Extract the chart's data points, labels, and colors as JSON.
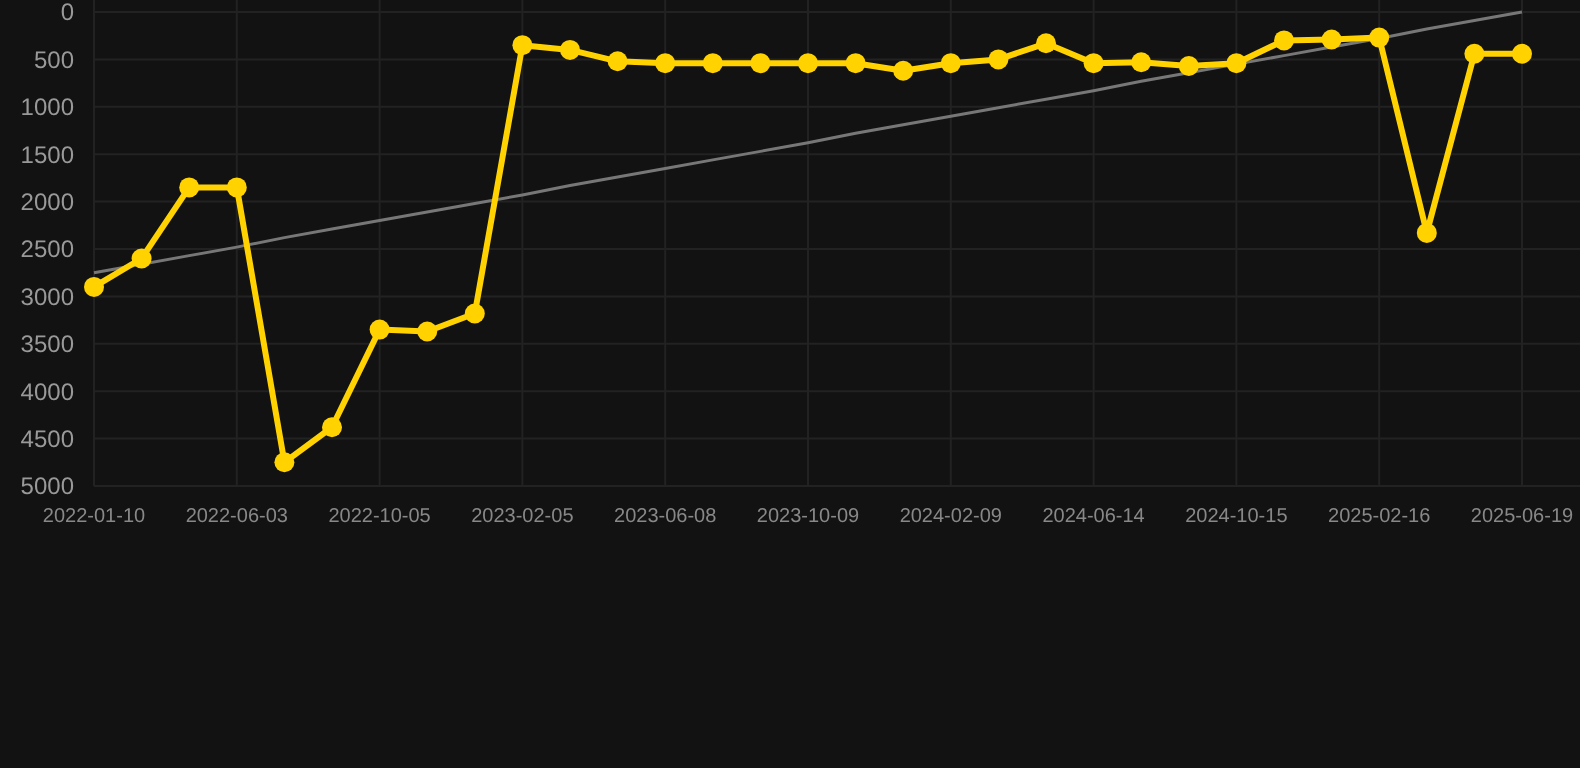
{
  "chart_data": {
    "type": "line",
    "categories": [
      "2022-01-10",
      null,
      null,
      "2022-06-03",
      null,
      null,
      "2022-10-05",
      null,
      null,
      "2023-02-05",
      null,
      null,
      "2023-06-08",
      null,
      null,
      "2023-10-09",
      null,
      null,
      "2024-02-09",
      null,
      null,
      "2024-06-14",
      null,
      null,
      "2024-10-15",
      null,
      null,
      "2025-02-16",
      null,
      null,
      "2025-06-19"
    ],
    "series": [
      {
        "color": "#ffd200",
        "marker": "circle",
        "values": [
          2900,
          2600,
          1850,
          1850,
          4750,
          4380,
          3350,
          3370,
          3180,
          350,
          400,
          520,
          540,
          540,
          540,
          540,
          540,
          620,
          540,
          500,
          330,
          540,
          530,
          570,
          540,
          300,
          290,
          270,
          2330,
          440,
          440
        ]
      },
      {
        "type": "line",
        "color": "#777777",
        "marker": "none",
        "values": [
          2750,
          2660,
          2570,
          2480,
          2380,
          2290,
          2200,
          2110,
          2020,
          1930,
          1830,
          1740,
          1650,
          1560,
          1470,
          1380,
          1280,
          1190,
          1100,
          1010,
          920,
          830,
          730,
          640,
          550,
          460,
          370,
          280,
          180,
          90,
          0
        ]
      }
    ],
    "ylim": [
      5000,
      0
    ],
    "yticks": [
      0,
      500,
      1000,
      1500,
      2000,
      2500,
      3000,
      3500,
      4000,
      4500,
      5000
    ],
    "grid": true
  }
}
